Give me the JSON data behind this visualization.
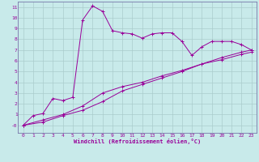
{
  "title": "",
  "xlabel": "Windchill (Refroidissement éolien,°C)",
  "bg_color": "#c8eaea",
  "line_color": "#990099",
  "grid_color": "#aacccc",
  "spine_color": "#7777aa",
  "xlim": [
    -0.5,
    23.5
  ],
  "ylim": [
    -0.7,
    11.5
  ],
  "xticks": [
    0,
    1,
    2,
    3,
    4,
    5,
    6,
    7,
    8,
    9,
    10,
    11,
    12,
    13,
    14,
    15,
    16,
    17,
    18,
    19,
    20,
    21,
    22,
    23
  ],
  "yticks": [
    0,
    1,
    2,
    3,
    4,
    5,
    6,
    7,
    8,
    9,
    10,
    11
  ],
  "line1_x": [
    0,
    1,
    2,
    3,
    4,
    5,
    6,
    7,
    8,
    9,
    10,
    11,
    12,
    13,
    14,
    15,
    16,
    17,
    18,
    19,
    20,
    21,
    22,
    23
  ],
  "line1_y": [
    0.0,
    0.9,
    1.1,
    2.5,
    2.3,
    2.6,
    9.8,
    11.1,
    10.6,
    8.8,
    8.6,
    8.5,
    8.1,
    8.5,
    8.6,
    8.6,
    7.8,
    6.5,
    7.3,
    7.8,
    7.8,
    7.8,
    7.5,
    7.0
  ],
  "line2_x": [
    0,
    2,
    4,
    6,
    8,
    10,
    12,
    14,
    16,
    18,
    20,
    22,
    23
  ],
  "line2_y": [
    0.0,
    0.5,
    1.0,
    1.8,
    3.0,
    3.6,
    4.0,
    4.6,
    5.1,
    5.7,
    6.1,
    6.6,
    6.8
  ],
  "line3_x": [
    0,
    2,
    4,
    6,
    8,
    10,
    12,
    14,
    16,
    18,
    20,
    22,
    23
  ],
  "line3_y": [
    0.0,
    0.3,
    0.9,
    1.4,
    2.2,
    3.2,
    3.8,
    4.4,
    5.0,
    5.7,
    6.3,
    6.8,
    7.0
  ]
}
